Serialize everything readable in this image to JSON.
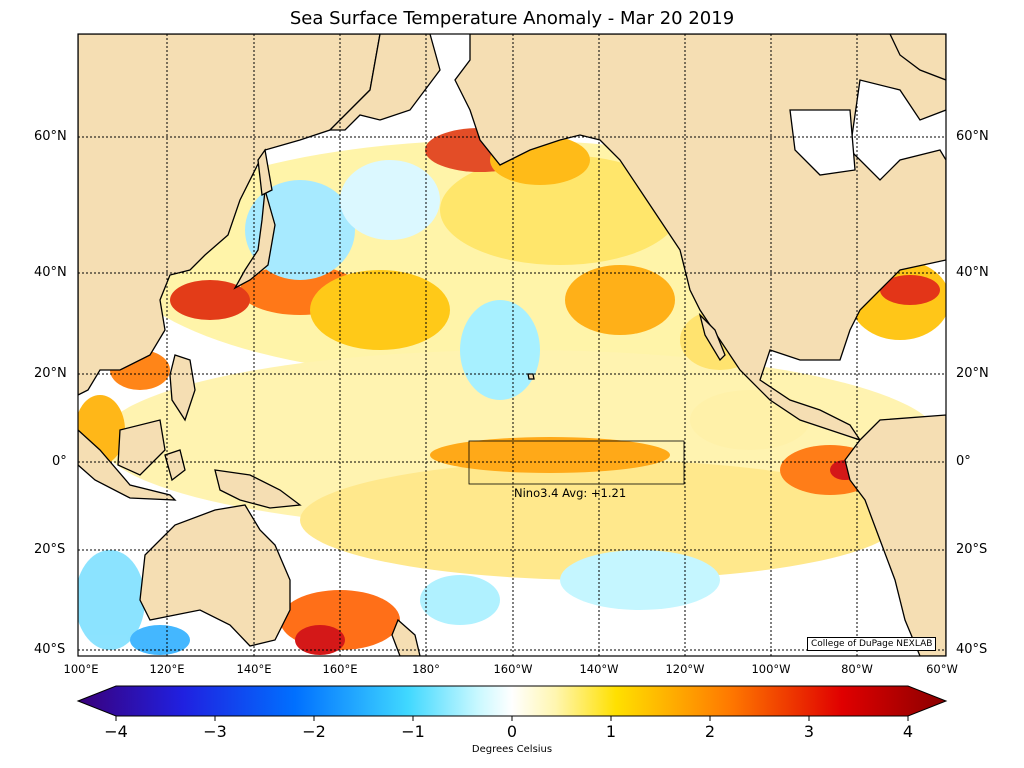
{
  "title": "Sea Surface Temperature Anomaly - Mar 20 2019",
  "lat_labels": [
    "60°N",
    "40°N",
    "20°N",
    "0°",
    "20°S",
    "40°S"
  ],
  "lon_labels": [
    "100°E",
    "120°E",
    "140°E",
    "160°E",
    "180°",
    "160°W",
    "140°W",
    "120°W",
    "100°W",
    "80°W",
    "60°W"
  ],
  "region_label": "Nino3.4 Avg: +1.21",
  "credit": "College of DuPage NEXLAB",
  "colorbar": {
    "ticks": [
      "−4",
      "−3",
      "−2",
      "−1",
      "0",
      "1",
      "2",
      "3",
      "4"
    ],
    "units": "Degrees Celsius"
  },
  "colors": {
    "land": "#f5deb3",
    "ocean": "#ffffff",
    "cold": "#00bfff",
    "warm": "#ffd700",
    "hot": "#e00000"
  }
}
